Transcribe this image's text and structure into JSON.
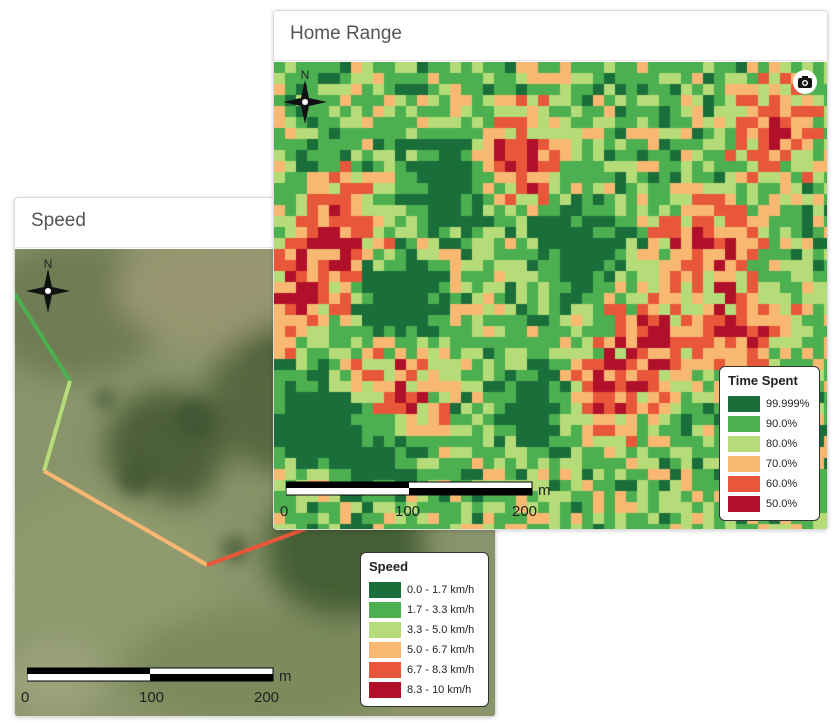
{
  "speed_panel": {
    "title": "Speed",
    "compass_label": "N",
    "legend": {
      "title": "Speed",
      "items": [
        {
          "label": "0.0 - 1.7 km/h",
          "color": "#1a6e3a"
        },
        {
          "label": "1.7 - 3.3 km/h",
          "color": "#4caf50"
        },
        {
          "label": "3.3 - 5.0 km/h",
          "color": "#b5dc78"
        },
        {
          "label": "5.0 - 6.7 km/h",
          "color": "#f9b872"
        },
        {
          "label": "6.7 - 8.3 km/h",
          "color": "#e8573a"
        },
        {
          "label": "8.3 - 10 km/h",
          "color": "#b0102a"
        }
      ]
    },
    "scale": {
      "unit": "m",
      "ticks": [
        "0",
        "100",
        "200"
      ]
    }
  },
  "range_panel": {
    "title": "Home Range",
    "compass_label": "N",
    "camera_icon": "camera-icon",
    "legend": {
      "title": "Time Spent",
      "items": [
        {
          "label": "99.999%",
          "color": "#1a6e3a"
        },
        {
          "label": "90.0%",
          "color": "#4caf50"
        },
        {
          "label": "80.0%",
          "color": "#b5dc78"
        },
        {
          "label": "70.0%",
          "color": "#f9b872"
        },
        {
          "label": "60.0%",
          "color": "#e8573a"
        },
        {
          "label": "50.0%",
          "color": "#b0102a"
        }
      ]
    },
    "scale": {
      "unit": "m",
      "ticks": [
        "0",
        "100",
        "200"
      ]
    }
  }
}
